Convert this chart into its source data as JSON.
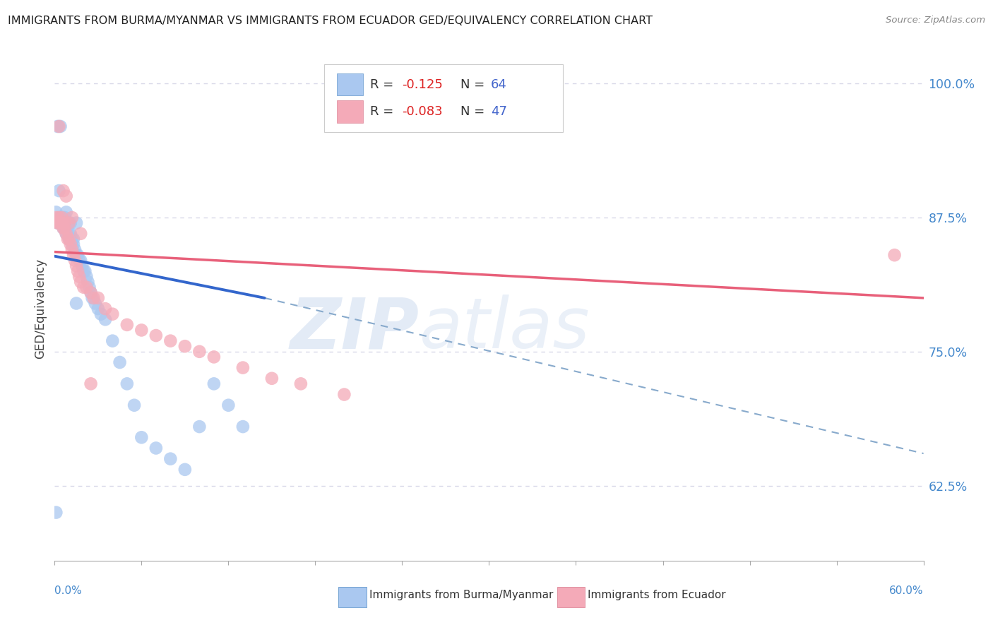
{
  "title": "IMMIGRANTS FROM BURMA/MYANMAR VS IMMIGRANTS FROM ECUADOR GED/EQUIVALENCY CORRELATION CHART",
  "source": "Source: ZipAtlas.com",
  "ylabel": "GED/Equivalency",
  "xmin": 0.0,
  "xmax": 0.6,
  "ymin": 0.555,
  "ymax": 1.025,
  "right_yticks": [
    1.0,
    0.875,
    0.75,
    0.625
  ],
  "right_yticklabels": [
    "100.0%",
    "87.5%",
    "75.0%",
    "62.5%"
  ],
  "series1_label": "Immigrants from Burma/Myanmar",
  "series1_color": "#aac8f0",
  "series2_label": "Immigrants from Ecuador",
  "series2_color": "#f4aab8",
  "watermark_zip": "ZIP",
  "watermark_atlas": "atlas",
  "grid_color": "#d8d8e8",
  "background_color": "#ffffff",
  "scatter1_x": [
    0.001,
    0.002,
    0.002,
    0.003,
    0.003,
    0.004,
    0.004,
    0.004,
    0.005,
    0.005,
    0.006,
    0.006,
    0.007,
    0.007,
    0.007,
    0.008,
    0.008,
    0.008,
    0.009,
    0.009,
    0.01,
    0.01,
    0.01,
    0.011,
    0.011,
    0.011,
    0.012,
    0.012,
    0.013,
    0.013,
    0.014,
    0.015,
    0.015,
    0.016,
    0.017,
    0.018,
    0.019,
    0.02,
    0.021,
    0.022,
    0.023,
    0.024,
    0.025,
    0.026,
    0.028,
    0.03,
    0.032,
    0.035,
    0.04,
    0.045,
    0.05,
    0.055,
    0.06,
    0.07,
    0.08,
    0.09,
    0.1,
    0.11,
    0.12,
    0.13,
    0.001,
    0.003,
    0.008,
    0.015
  ],
  "scatter1_y": [
    0.6,
    0.96,
    0.87,
    0.87,
    0.875,
    0.875,
    0.87,
    0.96,
    0.875,
    0.87,
    0.87,
    0.865,
    0.87,
    0.865,
    0.875,
    0.865,
    0.86,
    0.87,
    0.86,
    0.87,
    0.855,
    0.86,
    0.87,
    0.855,
    0.86,
    0.87,
    0.85,
    0.855,
    0.85,
    0.855,
    0.845,
    0.84,
    0.87,
    0.84,
    0.835,
    0.835,
    0.83,
    0.825,
    0.825,
    0.82,
    0.815,
    0.81,
    0.805,
    0.8,
    0.795,
    0.79,
    0.785,
    0.78,
    0.76,
    0.74,
    0.72,
    0.7,
    0.67,
    0.66,
    0.65,
    0.64,
    0.68,
    0.72,
    0.7,
    0.68,
    0.88,
    0.9,
    0.88,
    0.795
  ],
  "scatter2_x": [
    0.001,
    0.002,
    0.003,
    0.003,
    0.004,
    0.005,
    0.005,
    0.006,
    0.007,
    0.007,
    0.008,
    0.009,
    0.01,
    0.01,
    0.011,
    0.012,
    0.013,
    0.014,
    0.015,
    0.016,
    0.017,
    0.018,
    0.02,
    0.022,
    0.025,
    0.027,
    0.03,
    0.035,
    0.04,
    0.05,
    0.06,
    0.07,
    0.08,
    0.09,
    0.1,
    0.11,
    0.13,
    0.15,
    0.17,
    0.2,
    0.003,
    0.006,
    0.008,
    0.012,
    0.018,
    0.58,
    0.025
  ],
  "scatter2_y": [
    0.875,
    0.87,
    0.875,
    0.87,
    0.87,
    0.875,
    0.87,
    0.865,
    0.87,
    0.865,
    0.86,
    0.855,
    0.855,
    0.87,
    0.85,
    0.845,
    0.84,
    0.835,
    0.83,
    0.825,
    0.82,
    0.815,
    0.81,
    0.81,
    0.805,
    0.8,
    0.8,
    0.79,
    0.785,
    0.775,
    0.77,
    0.765,
    0.76,
    0.755,
    0.75,
    0.745,
    0.735,
    0.725,
    0.72,
    0.71,
    0.96,
    0.9,
    0.895,
    0.875,
    0.86,
    0.84,
    0.72
  ],
  "trendline1_x": [
    0.0,
    0.145
  ],
  "trendline1_y": [
    0.839,
    0.8
  ],
  "trendline2_x": [
    0.0,
    0.6
  ],
  "trendline2_y": [
    0.843,
    0.8
  ],
  "dashed_line_x": [
    0.145,
    0.6
  ],
  "dashed_line_y": [
    0.8,
    0.655
  ]
}
